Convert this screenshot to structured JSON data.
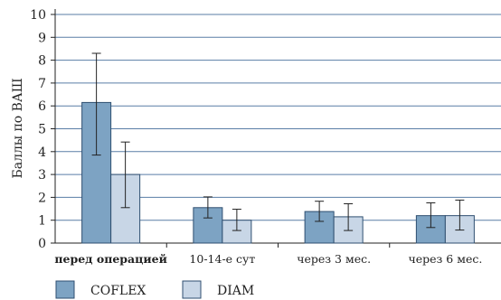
{
  "chart_data": {
    "type": "bar",
    "ylabel": "Баллы по ВАШ",
    "xlabel": "",
    "ylim": [
      0,
      10
    ],
    "yticks": [
      0,
      1,
      2,
      3,
      4,
      5,
      6,
      7,
      8,
      9,
      10
    ],
    "grid": true,
    "legend_position": "bottom-left",
    "categories": [
      "перед операцией",
      "10-14-е сут",
      "через 3 мес.",
      "через 6 мес."
    ],
    "series": [
      {
        "name": "COFLEX",
        "color": "#7da3c3",
        "values": [
          6.15,
          1.55,
          1.38,
          1.2
        ],
        "err_low": [
          3.85,
          1.1,
          0.95,
          0.68
        ],
        "err_high": [
          8.3,
          2.02,
          1.83,
          1.76
        ]
      },
      {
        "name": "DIAM",
        "color": "#c8d6e6",
        "values": [
          3.0,
          1.0,
          1.15,
          1.2
        ],
        "err_low": [
          1.55,
          0.55,
          0.55,
          0.57
        ],
        "err_high": [
          4.42,
          1.48,
          1.72,
          1.88
        ]
      }
    ]
  }
}
